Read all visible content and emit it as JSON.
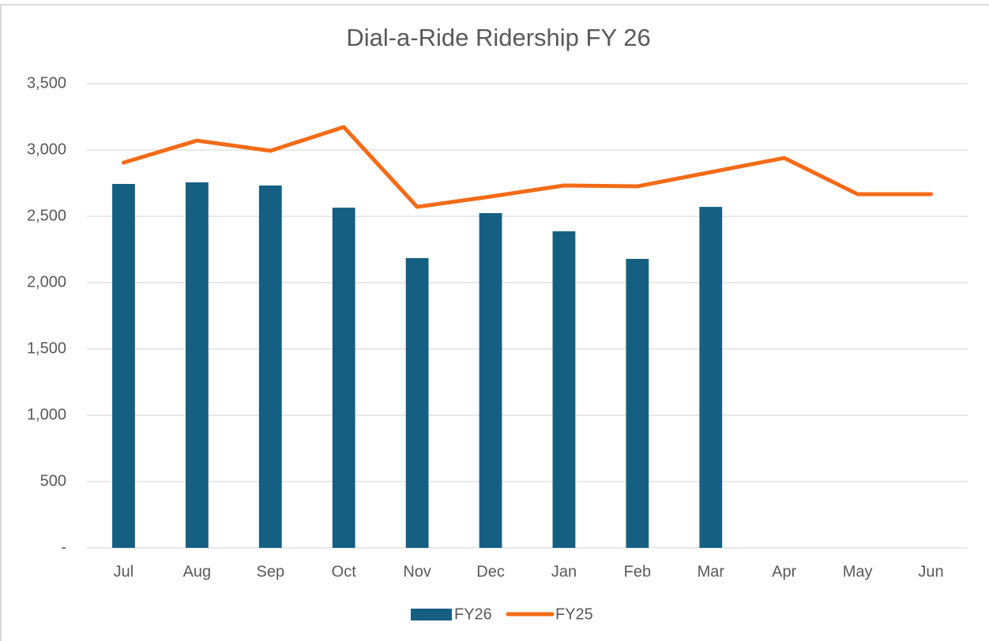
{
  "chart_data": {
    "type": "combo",
    "title": "Dial-a-Ride Ridership FY 26",
    "categories": [
      "Jul",
      "Aug",
      "Sep",
      "Oct",
      "Nov",
      "Dec",
      "Jan",
      "Feb",
      "Mar",
      "Apr",
      "May",
      "Jun"
    ],
    "series": [
      {
        "name": "FY26",
        "type": "bar",
        "color": "#156082",
        "values": [
          2744,
          2756,
          2732,
          2565,
          2185,
          2524,
          2387,
          2179,
          2571,
          null,
          null,
          null
        ]
      },
      {
        "name": "FY25",
        "type": "line",
        "color": "#f36b16",
        "values": [
          2905,
          3071,
          2994,
          3173,
          2571,
          2649,
          2732,
          2726,
          2833,
          2940,
          2667,
          2667
        ]
      }
    ],
    "ylim": [
      0,
      3500
    ],
    "yticks": [
      {
        "value": 0,
        "label": "-"
      },
      500,
      {
        "value": 1000,
        "label": "1,000"
      },
      {
        "value": 1500,
        "label": "1,500"
      },
      {
        "value": 2000,
        "label": "2,000"
      },
      {
        "value": 2500,
        "label": "2,500"
      },
      {
        "value": 3000,
        "label": "3,000"
      },
      {
        "value": 3500,
        "label": "3,500"
      }
    ],
    "grid": true,
    "legend": "bottom"
  }
}
